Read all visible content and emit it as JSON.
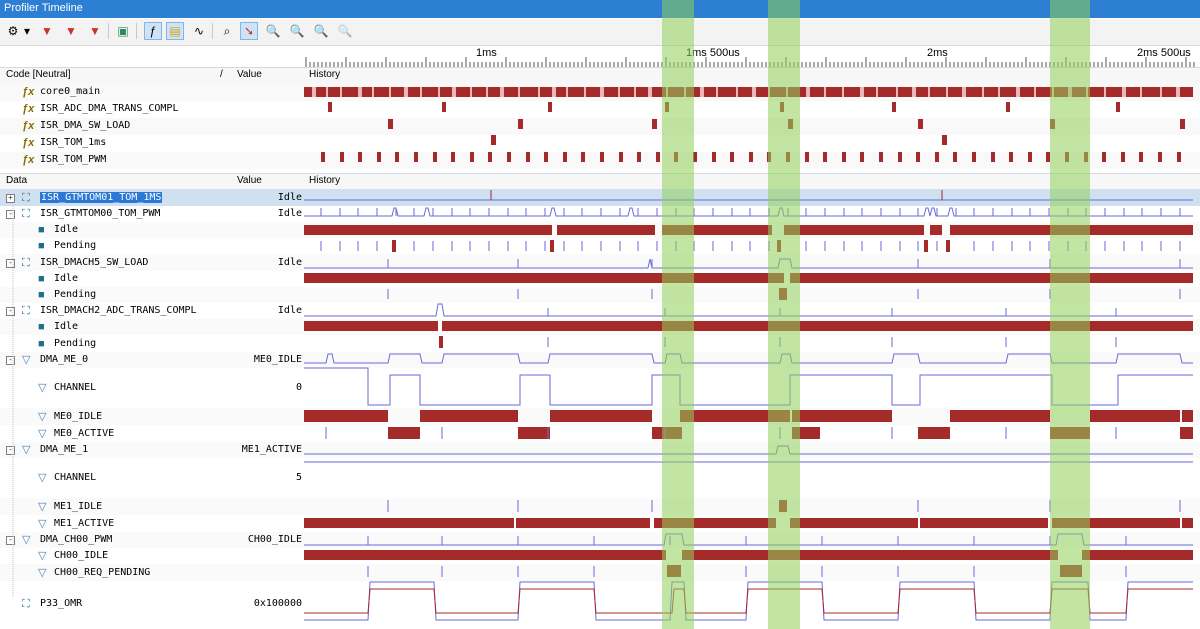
{
  "window": {
    "title": "Profiler Timeline"
  },
  "toolbar": {
    "icons": [
      "gear-icon",
      "dropdown-arrow-icon",
      "filter-icon",
      "filter-add-icon",
      "filter-remove-icon",
      "export-icon",
      "function-view-icon",
      "data-view-icon",
      "signal-view-icon",
      "find-icon",
      "cursor-icon",
      "zoom-in-icon",
      "zoom-out-icon",
      "zoom-fit-icon",
      "zoom-reset-icon"
    ]
  },
  "ruler": {
    "labels": [
      "1ms",
      "1ms 500us",
      "2ms",
      "2ms 500us"
    ]
  },
  "code_section": {
    "header": {
      "name": "Code [Neutral]",
      "sort": "/",
      "value": "Value",
      "history": "History"
    },
    "rows": [
      {
        "label": "core0_main"
      },
      {
        "label": "ISR_ADC_DMA_TRANS_COMPL"
      },
      {
        "label": "ISR_DMA_SW_LOAD"
      },
      {
        "label": "ISR_TOM_1ms"
      },
      {
        "label": "ISR_TOM_PWM"
      }
    ]
  },
  "data_section": {
    "header": {
      "name": "Data",
      "value": "Value",
      "history": "History"
    },
    "rows": [
      {
        "label": "ISR_GTMTOM01_TOM_1MS",
        "value": "Idle",
        "level": 0,
        "expander": "+",
        "icon": "state-icon",
        "selected": true
      },
      {
        "label": "ISR_GTMTOM00_TOM_PWM",
        "value": "Idle",
        "level": 0,
        "expander": "-",
        "icon": "state-icon"
      },
      {
        "label": "Idle",
        "value": "",
        "level": 1,
        "icon": "state-child-icon"
      },
      {
        "label": "Pending",
        "value": "",
        "level": 1,
        "icon": "state-child-icon"
      },
      {
        "label": "ISR_DMACH5_SW_LOAD",
        "value": "Idle",
        "level": 0,
        "expander": "-",
        "icon": "state-icon"
      },
      {
        "label": "Idle",
        "value": "",
        "level": 1,
        "icon": "state-child-icon"
      },
      {
        "label": "Pending",
        "value": "",
        "level": 1,
        "icon": "state-child-icon"
      },
      {
        "label": "ISR_DMACH2_ADC_TRANS_COMPL",
        "value": "Idle",
        "level": 0,
        "expander": "-",
        "icon": "state-icon"
      },
      {
        "label": "Idle",
        "value": "",
        "level": 1,
        "icon": "state-child-icon"
      },
      {
        "label": "Pending",
        "value": "",
        "level": 1,
        "icon": "state-child-icon"
      },
      {
        "label": "DMA_ME_0",
        "value": "ME0_IDLE",
        "level": 0,
        "expander": "-",
        "icon": "signal-icon"
      },
      {
        "label": "CHANNEL",
        "value": "0",
        "level": 1,
        "icon": "signal-icon"
      },
      {
        "label": "ME0_IDLE",
        "value": "",
        "level": 1,
        "icon": "signal-icon"
      },
      {
        "label": "ME0_ACTIVE",
        "value": "",
        "level": 1,
        "icon": "signal-icon"
      },
      {
        "label": "DMA_ME_1",
        "value": "ME1_ACTIVE",
        "level": 0,
        "expander": "-",
        "icon": "signal-icon"
      },
      {
        "label": "CHANNEL",
        "value": "5",
        "level": 1,
        "icon": "signal-icon"
      },
      {
        "label": "ME1_IDLE",
        "value": "",
        "level": 1,
        "icon": "signal-icon"
      },
      {
        "label": "ME1_ACTIVE",
        "value": "",
        "level": 1,
        "icon": "signal-icon"
      },
      {
        "label": "DMA_CH00_PWM",
        "value": "CH00_IDLE",
        "level": 0,
        "expander": "-",
        "icon": "signal-icon"
      },
      {
        "label": "CH00_IDLE",
        "value": "",
        "level": 1,
        "icon": "signal-icon"
      },
      {
        "label": "CH00_REQ_PENDING",
        "value": "",
        "level": 1,
        "icon": "signal-icon"
      },
      {
        "label": "P33_OMR",
        "value": "0x100000",
        "level": 0,
        "icon": "state-icon"
      }
    ]
  },
  "colors": {
    "title_bar": "#2d7fd3",
    "execution_bar": "#a52a2a",
    "signal_line": "#6a6ad8",
    "highlight": "#8fd05a"
  }
}
